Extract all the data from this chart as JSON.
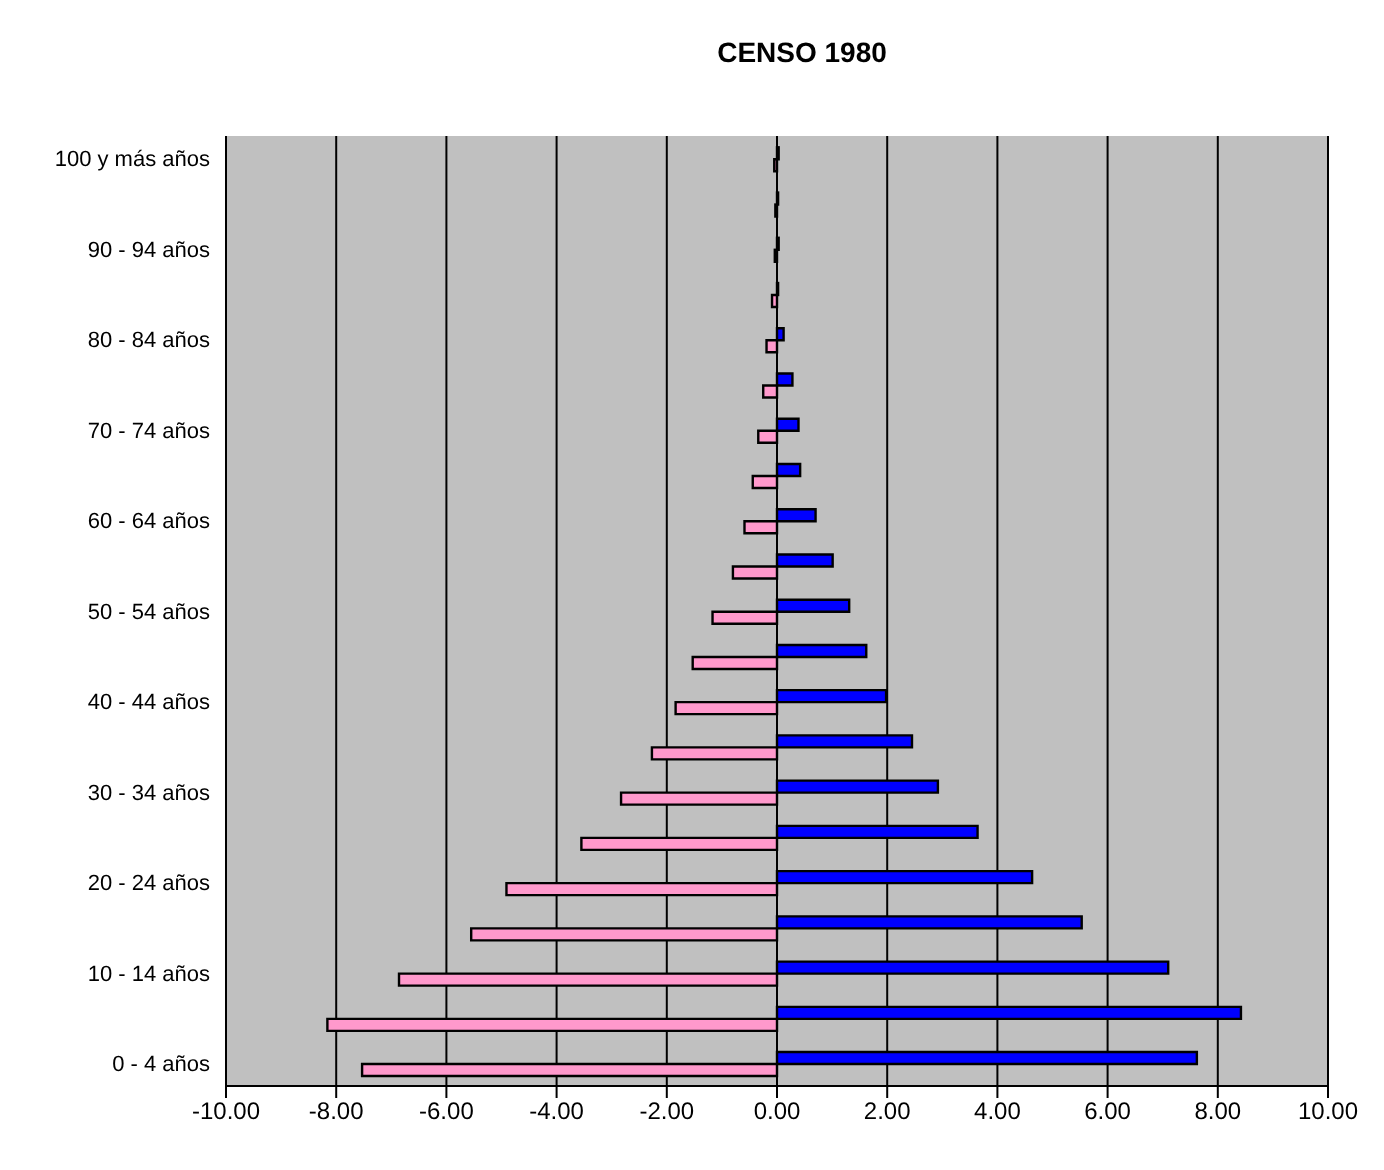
{
  "chart_data": {
    "type": "bar",
    "orientation": "horizontal",
    "title": "CENSO 1980",
    "categories": [
      "100 y más años",
      null,
      "90 - 94 años",
      null,
      "80 - 84 años",
      null,
      "70 - 74 años",
      null,
      "60 - 64 años",
      null,
      "50 - 54 años",
      null,
      "40 - 44 años",
      null,
      "30 - 34 años",
      null,
      "20 - 24 años",
      null,
      "10 - 14 años",
      null,
      "0 - 4 años"
    ],
    "series": [
      {
        "color": "#0000ff",
        "values": [
          0.03,
          0.02,
          0.03,
          0.02,
          0.12,
          0.28,
          0.39,
          0.42,
          0.7,
          1.01,
          1.31,
          1.62,
          1.98,
          2.45,
          2.92,
          3.64,
          4.63,
          5.53,
          7.1,
          8.42,
          7.62
        ]
      },
      {
        "color": "#ff99cc",
        "values": [
          -0.05,
          -0.03,
          -0.04,
          -0.09,
          -0.19,
          -0.25,
          -0.34,
          -0.44,
          -0.59,
          -0.8,
          -1.17,
          -1.53,
          -1.84,
          -2.27,
          -2.83,
          -3.55,
          -4.91,
          -5.55,
          -6.86,
          -8.16,
          -7.53
        ]
      }
    ],
    "xlim": [
      -10,
      10
    ],
    "xticks": [
      {
        "value": -10,
        "label": "-10.00"
      },
      {
        "value": -8,
        "label": "-8.00"
      },
      {
        "value": -6,
        "label": "-6.00"
      },
      {
        "value": -4,
        "label": "-4.00"
      },
      {
        "value": -2,
        "label": "-2.00"
      },
      {
        "value": 0,
        "label": "0.00"
      },
      {
        "value": 2,
        "label": "2.00"
      },
      {
        "value": 4,
        "label": "4.00"
      },
      {
        "value": 6,
        "label": "6.00"
      },
      {
        "value": 8,
        "label": "8.00"
      },
      {
        "value": 10,
        "label": "10.00"
      }
    ],
    "grid": "x",
    "legend": false
  }
}
